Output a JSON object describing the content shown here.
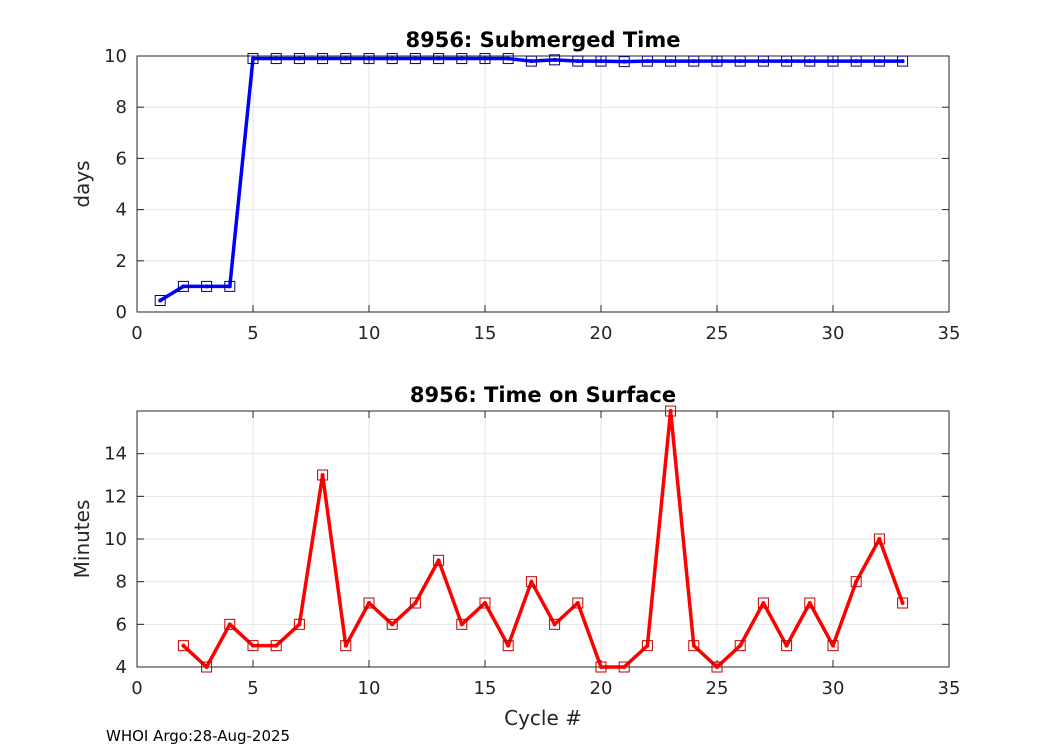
{
  "chart_data": [
    {
      "type": "line",
      "title": "8956: Submerged Time",
      "xlabel": "",
      "ylabel": "days",
      "xlim": [
        0,
        35
      ],
      "ylim": [
        0,
        10
      ],
      "xticks": [
        0,
        5,
        10,
        15,
        20,
        25,
        30,
        35
      ],
      "yticks": [
        0,
        2,
        4,
        6,
        8,
        10
      ],
      "grid": true,
      "series": [
        {
          "name": "Submerged Time",
          "color": "#0000ff",
          "marker": "square",
          "x": [
            1,
            2,
            3,
            4,
            5,
            6,
            7,
            8,
            9,
            10,
            11,
            12,
            13,
            14,
            15,
            16,
            17,
            18,
            19,
            20,
            21,
            22,
            23,
            24,
            25,
            26,
            27,
            28,
            29,
            30,
            31,
            32,
            33
          ],
          "values": [
            0.45,
            1.0,
            1.0,
            1.0,
            9.9,
            9.9,
            9.9,
            9.9,
            9.9,
            9.9,
            9.9,
            9.9,
            9.9,
            9.9,
            9.9,
            9.9,
            9.8,
            9.85,
            9.8,
            9.8,
            9.78,
            9.8,
            9.8,
            9.8,
            9.8,
            9.8,
            9.8,
            9.8,
            9.8,
            9.8,
            9.8,
            9.8,
            9.8
          ]
        }
      ]
    },
    {
      "type": "line",
      "title": "8956: Time on Surface",
      "xlabel": "Cycle #",
      "ylabel": "Minutes",
      "xlim": [
        0,
        35
      ],
      "ylim": [
        4,
        16
      ],
      "xticks": [
        0,
        5,
        10,
        15,
        20,
        25,
        30,
        35
      ],
      "yticks": [
        4,
        6,
        8,
        10,
        12,
        14
      ],
      "grid": true,
      "series": [
        {
          "name": "Time on Surface",
          "color": "#ff0000",
          "marker": "square",
          "x": [
            2,
            3,
            4,
            5,
            6,
            7,
            8,
            9,
            10,
            11,
            12,
            13,
            14,
            15,
            16,
            17,
            18,
            19,
            20,
            21,
            22,
            23,
            24,
            25,
            26,
            27,
            28,
            29,
            30,
            31,
            32,
            33
          ],
          "values": [
            5,
            4,
            6,
            5,
            5,
            6,
            13,
            5,
            7,
            6,
            7,
            9,
            6,
            7,
            5,
            8,
            6,
            7,
            4,
            4,
            5,
            16,
            5,
            4,
            5,
            7,
            5,
            7,
            5,
            8,
            10,
            7
          ]
        }
      ]
    }
  ],
  "footer": "WHOI Argo:28-Aug-2025"
}
